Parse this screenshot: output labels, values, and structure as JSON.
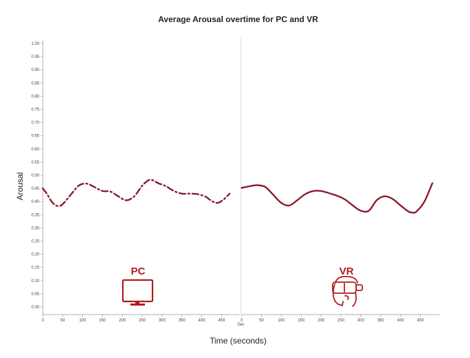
{
  "chart_data": {
    "type": "line",
    "title": "Average Arousal overtime for PC and VR",
    "xlabel": "Time (seconds)",
    "ylabel": "Arousal",
    "x_unit_label": "Sec",
    "ylim": [
      0,
      1
    ],
    "y_ticks": [
      "0.00",
      "0.05",
      "0.10",
      "0.15",
      "0.20",
      "0.25",
      "0.30",
      "0.35",
      "0.40",
      "0.45",
      "0.50",
      "0.55",
      "0.60",
      "0.65",
      "0.70",
      "0.75",
      "0.80",
      "0.85",
      "0.90",
      "0.95",
      "1.00"
    ],
    "grid": false,
    "line_color": "#8b1a2b",
    "icon_color": "#b01c1c",
    "panels": [
      {
        "label": "PC",
        "icon": "monitor-icon",
        "line_style": "dashed",
        "xlim": [
          0,
          490
        ],
        "x_ticks": [
          0,
          50,
          100,
          150,
          200,
          250,
          300,
          350,
          400,
          450
        ],
        "x": [
          0,
          10,
          20,
          30,
          40,
          50,
          70,
          90,
          110,
          130,
          150,
          170,
          190,
          210,
          230,
          250,
          265,
          275,
          290,
          310,
          330,
          350,
          370,
          390,
          410,
          425,
          440,
          455,
          470
        ],
        "y": [
          0.45,
          0.43,
          0.405,
          0.388,
          0.383,
          0.39,
          0.425,
          0.46,
          0.468,
          0.455,
          0.44,
          0.438,
          0.42,
          0.405,
          0.42,
          0.46,
          0.48,
          0.482,
          0.47,
          0.458,
          0.44,
          0.43,
          0.43,
          0.428,
          0.418,
          0.402,
          0.395,
          0.408,
          0.43
        ]
      },
      {
        "label": "VR",
        "icon": "vr-headset-icon",
        "line_style": "solid",
        "xlim": [
          0,
          490
        ],
        "x_ticks": [
          0,
          50,
          100,
          150,
          200,
          250,
          300,
          350,
          400,
          450
        ],
        "x": [
          0,
          20,
          40,
          60,
          80,
          100,
          120,
          140,
          160,
          180,
          200,
          220,
          240,
          260,
          280,
          300,
          320,
          340,
          360,
          380,
          400,
          420,
          430,
          440,
          460,
          480
        ],
        "y": [
          0.452,
          0.458,
          0.462,
          0.455,
          0.425,
          0.395,
          0.385,
          0.405,
          0.428,
          0.44,
          0.44,
          0.432,
          0.422,
          0.408,
          0.385,
          0.365,
          0.365,
          0.405,
          0.42,
          0.41,
          0.385,
          0.362,
          0.358,
          0.362,
          0.4,
          0.47
        ]
      }
    ]
  }
}
